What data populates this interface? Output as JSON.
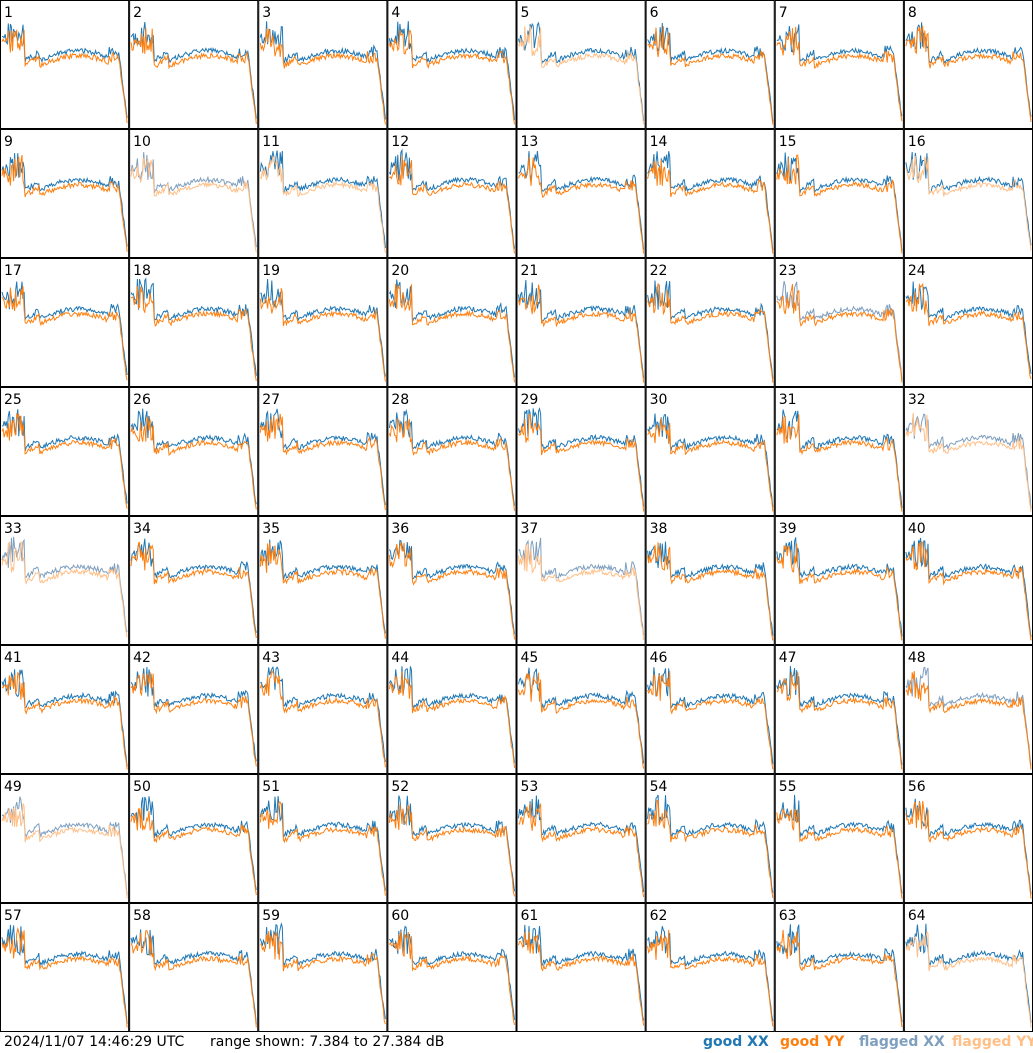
{
  "chart_data": {
    "type": "line",
    "layout": "small-multiples 8x8",
    "series_styles": [
      {
        "name": "good XX",
        "color": "#1f77b4"
      },
      {
        "name": "good YY",
        "color": "#ff7f0e"
      },
      {
        "name": "flagged XX",
        "color": "#7f9fbf"
      },
      {
        "name": "flagged YY",
        "color": "#ffbf87"
      }
    ],
    "y_range_db": [
      7.384,
      27.384
    ],
    "panels": [
      {
        "label": "1",
        "xx": "good",
        "yy": "good"
      },
      {
        "label": "2",
        "xx": "good",
        "yy": "good"
      },
      {
        "label": "3",
        "xx": "good",
        "yy": "good"
      },
      {
        "label": "4",
        "xx": "good",
        "yy": "good"
      },
      {
        "label": "5",
        "xx": "good",
        "yy": "flagged"
      },
      {
        "label": "6",
        "xx": "good",
        "yy": "good"
      },
      {
        "label": "7",
        "xx": "good",
        "yy": "good"
      },
      {
        "label": "8",
        "xx": "good",
        "yy": "good"
      },
      {
        "label": "9",
        "xx": "good",
        "yy": "good"
      },
      {
        "label": "10",
        "xx": "flagged",
        "yy": "flagged"
      },
      {
        "label": "11",
        "xx": "good",
        "yy": "flagged"
      },
      {
        "label": "12",
        "xx": "good",
        "yy": "good"
      },
      {
        "label": "13",
        "xx": "good",
        "yy": "good"
      },
      {
        "label": "14",
        "xx": "good",
        "yy": "good"
      },
      {
        "label": "15",
        "xx": "good",
        "yy": "good"
      },
      {
        "label": "16",
        "xx": "good",
        "yy": "flagged"
      },
      {
        "label": "17",
        "xx": "good",
        "yy": "good"
      },
      {
        "label": "18",
        "xx": "good",
        "yy": "good"
      },
      {
        "label": "19",
        "xx": "good",
        "yy": "good"
      },
      {
        "label": "20",
        "xx": "good",
        "yy": "good"
      },
      {
        "label": "21",
        "xx": "good",
        "yy": "good"
      },
      {
        "label": "22",
        "xx": "good",
        "yy": "good"
      },
      {
        "label": "23",
        "xx": "flagged",
        "yy": "good"
      },
      {
        "label": "24",
        "xx": "good",
        "yy": "good"
      },
      {
        "label": "25",
        "xx": "good",
        "yy": "good"
      },
      {
        "label": "26",
        "xx": "good",
        "yy": "good"
      },
      {
        "label": "27",
        "xx": "good",
        "yy": "good"
      },
      {
        "label": "28",
        "xx": "good",
        "yy": "good"
      },
      {
        "label": "29",
        "xx": "good",
        "yy": "good"
      },
      {
        "label": "30",
        "xx": "good",
        "yy": "good"
      },
      {
        "label": "31",
        "xx": "good",
        "yy": "good"
      },
      {
        "label": "32",
        "xx": "flagged",
        "yy": "flagged"
      },
      {
        "label": "33",
        "xx": "flagged",
        "yy": "flagged"
      },
      {
        "label": "34",
        "xx": "good",
        "yy": "good"
      },
      {
        "label": "35",
        "xx": "good",
        "yy": "good"
      },
      {
        "label": "36",
        "xx": "good",
        "yy": "good"
      },
      {
        "label": "37",
        "xx": "flagged",
        "yy": "flagged"
      },
      {
        "label": "38",
        "xx": "good",
        "yy": "good"
      },
      {
        "label": "39",
        "xx": "good",
        "yy": "good"
      },
      {
        "label": "40",
        "xx": "good",
        "yy": "good"
      },
      {
        "label": "41",
        "xx": "good",
        "yy": "good"
      },
      {
        "label": "42",
        "xx": "good",
        "yy": "good"
      },
      {
        "label": "43",
        "xx": "good",
        "yy": "good"
      },
      {
        "label": "44",
        "xx": "good",
        "yy": "good"
      },
      {
        "label": "45",
        "xx": "good",
        "yy": "good"
      },
      {
        "label": "46",
        "xx": "good",
        "yy": "good"
      },
      {
        "label": "47",
        "xx": "good",
        "yy": "good"
      },
      {
        "label": "48",
        "xx": "flagged",
        "yy": "good"
      },
      {
        "label": "49",
        "xx": "flagged",
        "yy": "flagged"
      },
      {
        "label": "50",
        "xx": "good",
        "yy": "good"
      },
      {
        "label": "51",
        "xx": "good",
        "yy": "good"
      },
      {
        "label": "52",
        "xx": "good",
        "yy": "good"
      },
      {
        "label": "53",
        "xx": "good",
        "yy": "good"
      },
      {
        "label": "54",
        "xx": "good",
        "yy": "good"
      },
      {
        "label": "55",
        "xx": "good",
        "yy": "good"
      },
      {
        "label": "56",
        "xx": "good",
        "yy": "good"
      },
      {
        "label": "57",
        "xx": "good",
        "yy": "good"
      },
      {
        "label": "58",
        "xx": "good",
        "yy": "good"
      },
      {
        "label": "59",
        "xx": "good",
        "yy": "good"
      },
      {
        "label": "60",
        "xx": "good",
        "yy": "good"
      },
      {
        "label": "61",
        "xx": "good",
        "yy": "good"
      },
      {
        "label": "62",
        "xx": "good",
        "yy": "good"
      },
      {
        "label": "63",
        "xx": "good",
        "yy": "good"
      },
      {
        "label": "64",
        "xx": "good",
        "yy": "flagged"
      }
    ]
  },
  "footer": {
    "timestamp": "2024/11/07 14:46:29 UTC",
    "range_text": "range shown: 7.384 to 27.384 dB"
  },
  "legend": [
    {
      "label": "good XX",
      "color": "#1f77b4"
    },
    {
      "label": "good YY",
      "color": "#ff7f0e"
    },
    {
      "label": "flagged XX",
      "color": "#7f9fbf"
    },
    {
      "label": "flagged YY",
      "color": "#ffbf87"
    }
  ]
}
